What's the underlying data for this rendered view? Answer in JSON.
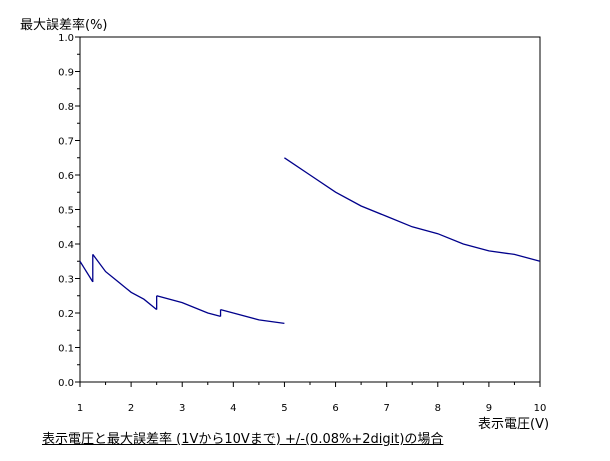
{
  "chart_data": {
    "type": "line",
    "ylabel": "最大誤差率(%)",
    "xlabel": "表示電圧(V)",
    "caption": "表示電圧と最大誤差率 (1Vから10Vまで) +/-(0.08%+2digit)の場合",
    "xlim": [
      1,
      10
    ],
    "ylim": [
      0,
      1.0
    ],
    "x_ticks": [
      "1",
      "2",
      "3",
      "4",
      "5",
      "6",
      "7",
      "8",
      "9",
      "10"
    ],
    "y_ticks": [
      "0.0",
      "0.1",
      "0.2",
      "0.3",
      "0.4",
      "0.5",
      "0.6",
      "0.7",
      "0.8",
      "0.9",
      "1.0"
    ],
    "grid": false,
    "line_color": "#00008b",
    "series": [
      {
        "segments": [
          [
            [
              1.0,
              0.35
            ],
            [
              1.25,
              0.29
            ]
          ],
          [
            [
              1.25,
              0.37
            ],
            [
              1.5,
              0.32
            ],
            [
              1.75,
              0.29
            ],
            [
              2.0,
              0.26
            ],
            [
              2.25,
              0.24
            ],
            [
              2.5,
              0.21
            ]
          ],
          [
            [
              2.5,
              0.25
            ],
            [
              3.0,
              0.23
            ],
            [
              3.5,
              0.2
            ],
            [
              3.75,
              0.19
            ]
          ],
          [
            [
              3.75,
              0.21
            ],
            [
              4.0,
              0.2
            ],
            [
              4.5,
              0.18
            ],
            [
              5.0,
              0.17
            ]
          ],
          [
            [
              5.0,
              0.65
            ],
            [
              5.5,
              0.6
            ],
            [
              6.0,
              0.55
            ],
            [
              6.5,
              0.51
            ],
            [
              7.0,
              0.48
            ],
            [
              7.5,
              0.45
            ],
            [
              8.0,
              0.43
            ],
            [
              8.5,
              0.4
            ],
            [
              9.0,
              0.38
            ],
            [
              9.5,
              0.37
            ],
            [
              10.0,
              0.35
            ]
          ]
        ]
      }
    ]
  }
}
